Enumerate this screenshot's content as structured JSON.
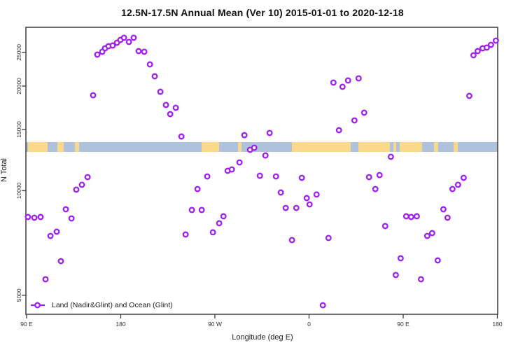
{
  "chart_data": {
    "type": "scatter",
    "title": "12.5N-17.5N Annual Mean (Ver 10)   2015-01-01 to 2020-12-18",
    "xlabel": "Longitude (deg E)",
    "ylabel": "N Total",
    "y_scale": "log10",
    "ylim": [
      4400,
      28500
    ],
    "y_ticks": [
      5000,
      10000,
      15000,
      20000,
      25000
    ],
    "x_ticks": [
      {
        "pos_deg": 0,
        "label": "90 E"
      },
      {
        "pos_deg": 90,
        "label": "180"
      },
      {
        "pos_deg": 180,
        "label": "90 W"
      },
      {
        "pos_deg": 270,
        "label": "0"
      },
      {
        "pos_deg": 360,
        "label": "90 E"
      },
      {
        "pos_deg": 450,
        "label": "180"
      }
    ],
    "x_axis_note": "axis runs 450 deg eastward from 90E: 90E-180-90W-0-90E-180",
    "legend": {
      "label": "Land (Nadir&Glint) and Ocean (Glint)",
      "marker": "open-circle-on-line"
    },
    "colors": {
      "marker": "#A020F0",
      "ocean_band": "#AEC2DE",
      "land_band": "#FBD98A",
      "axis": "#3d3d3d"
    },
    "map_band": {
      "n_top": 13800,
      "n_bottom": 12930,
      "land_segments_deg": [
        [
          1.3,
          20.1
        ],
        [
          29.4,
          35.5
        ],
        [
          46.2,
          50.2
        ],
        [
          167.3,
          184.0
        ],
        [
          202.1,
          205.4
        ],
        [
          253.6,
          309.8
        ],
        [
          317.2,
          347.3
        ],
        [
          350.6,
          353.3
        ],
        [
          356.6,
          378.1
        ],
        [
          389.4,
          393.4
        ],
        [
          408.2,
          412.2
        ]
      ]
    },
    "points": [
      [
        1.3,
        8400
      ],
      [
        7.4,
        8360
      ],
      [
        13.4,
        8400
      ],
      [
        18.1,
        5560
      ],
      [
        22.8,
        7410
      ],
      [
        28.8,
        7620
      ],
      [
        32.8,
        6270
      ],
      [
        37.5,
        8840
      ],
      [
        42.9,
        8320
      ],
      [
        47.5,
        10070
      ],
      [
        52.9,
        10400
      ],
      [
        58.3,
        10940
      ],
      [
        63.6,
        18820
      ],
      [
        67.6,
        24640
      ],
      [
        72.3,
        25110
      ],
      [
        75.0,
        25690
      ],
      [
        78.3,
        26050
      ],
      [
        82.3,
        26170
      ],
      [
        86.4,
        26660
      ],
      [
        89.7,
        27160
      ],
      [
        93.1,
        27550
      ],
      [
        97.8,
        26790
      ],
      [
        102.4,
        27550
      ],
      [
        107.1,
        25220
      ],
      [
        112.5,
        25110
      ],
      [
        117.9,
        23090
      ],
      [
        122.5,
        21340
      ],
      [
        127.9,
        19260
      ],
      [
        133.2,
        17650
      ],
      [
        137.3,
        16610
      ],
      [
        142.6,
        17320
      ],
      [
        148.0,
        14320
      ],
      [
        152.0,
        7480
      ],
      [
        158.0,
        8800
      ],
      [
        163.4,
        10110
      ],
      [
        167.4,
        8800
      ],
      [
        172.7,
        10990
      ],
      [
        178.1,
        7590
      ],
      [
        184.1,
        8060
      ],
      [
        188.2,
        8440
      ],
      [
        192.2,
        11410
      ],
      [
        196.2,
        11510
      ],
      [
        203.5,
        12060
      ],
      [
        208.2,
        14450
      ],
      [
        213.6,
        13110
      ],
      [
        217.6,
        13290
      ],
      [
        223.0,
        11040
      ],
      [
        228.3,
        12630
      ],
      [
        232.3,
        14660
      ],
      [
        238.4,
        10990
      ],
      [
        243.0,
        9880
      ],
      [
        247.7,
        8920
      ],
      [
        253.7,
        7210
      ],
      [
        257.8,
        8920
      ],
      [
        263.1,
        10890
      ],
      [
        267.8,
        9520
      ],
      [
        270.5,
        9130
      ],
      [
        277.2,
        9750
      ],
      [
        283.2,
        4680
      ],
      [
        288.6,
        7310
      ],
      [
        293.3,
        20470
      ],
      [
        298.6,
        14930
      ],
      [
        302.0,
        19910
      ],
      [
        307.3,
        20760
      ],
      [
        313.4,
        15930
      ],
      [
        317.4,
        21050
      ],
      [
        322.7,
        16770
      ],
      [
        327.4,
        10940
      ],
      [
        333.4,
        10110
      ],
      [
        337.4,
        11090
      ],
      [
        342.8,
        7910
      ],
      [
        348.2,
        12520
      ],
      [
        352.9,
        5720
      ],
      [
        357.6,
        6390
      ],
      [
        362.9,
        8440
      ],
      [
        367.6,
        8400
      ],
      [
        373.0,
        8440
      ],
      [
        377.0,
        5560
      ],
      [
        383.0,
        7410
      ],
      [
        387.7,
        7550
      ],
      [
        393.0,
        6300
      ],
      [
        398.4,
        8840
      ],
      [
        402.4,
        8360
      ],
      [
        407.1,
        10110
      ],
      [
        412.4,
        10400
      ],
      [
        417.8,
        10890
      ],
      [
        423.2,
        18740
      ],
      [
        427.2,
        24530
      ],
      [
        431.2,
        25220
      ],
      [
        435.9,
        25690
      ],
      [
        439.9,
        25810
      ],
      [
        443.9,
        26290
      ],
      [
        448.6,
        27030
      ]
    ]
  }
}
